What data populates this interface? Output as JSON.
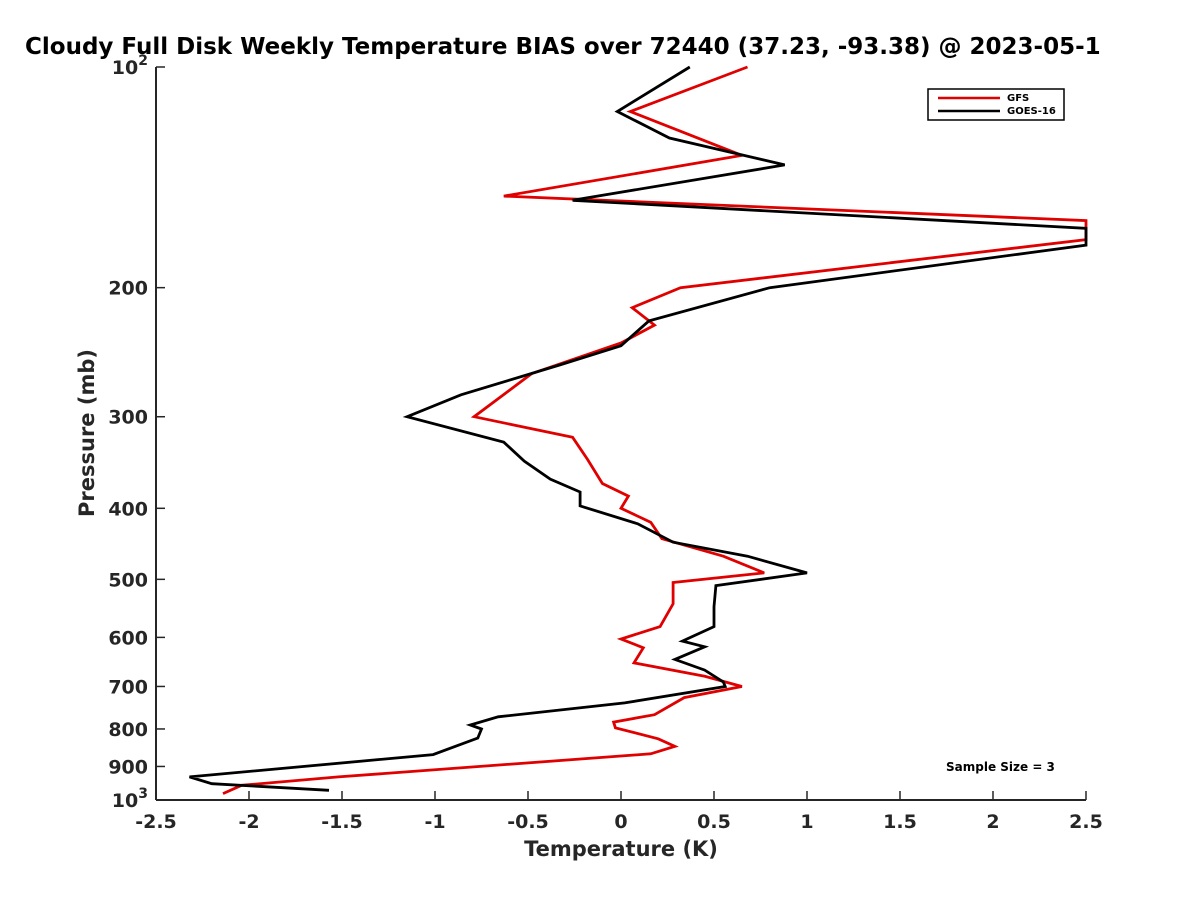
{
  "chart_data": {
    "type": "line",
    "title": "Cloudy Full Disk Weekly Temperature BIAS over 72440 (37.23, -93.38) @ 2023-05-1",
    "xlabel": "Temperature (K)",
    "ylabel": "Pressure (mb)",
    "xlim": [
      -2.5,
      2.5
    ],
    "ylim": [
      100,
      1000
    ],
    "y_scale": "log",
    "y_reversed": true,
    "x_ticks": [
      -2.5,
      -2,
      -1.5,
      -1,
      -0.5,
      0,
      0.5,
      1,
      1.5,
      2,
      2.5
    ],
    "x_tick_labels": [
      "-2.5",
      "-2",
      "-1.5",
      "-1",
      "-0.5",
      "0",
      "0.5",
      "1",
      "1.5",
      "2",
      "2.5"
    ],
    "y_ticks": [
      100,
      200,
      300,
      400,
      500,
      600,
      700,
      800,
      900,
      1000
    ],
    "y_tick_labels": [
      {
        "base": "10",
        "exp": "2"
      },
      {
        "base": "200",
        "exp": ""
      },
      {
        "base": "300",
        "exp": ""
      },
      {
        "base": "400",
        "exp": ""
      },
      {
        "base": "500",
        "exp": ""
      },
      {
        "base": "600",
        "exp": ""
      },
      {
        "base": "700",
        "exp": ""
      },
      {
        "base": "800",
        "exp": ""
      },
      {
        "base": "900",
        "exp": ""
      },
      {
        "base": "10",
        "exp": "3"
      }
    ],
    "grid": false,
    "legend_position": "top-right",
    "annotation": "Sample Size = 3",
    "series": [
      {
        "name": "GFS",
        "color": "#e00000",
        "points": [
          [
            0.68,
            100
          ],
          [
            0.05,
            115
          ],
          [
            0.65,
            132
          ],
          [
            -0.63,
            150
          ],
          [
            2.5,
            162
          ],
          [
            2.5,
            172
          ],
          [
            0.32,
            200
          ],
          [
            0.06,
            213
          ],
          [
            0.18,
            225
          ],
          [
            0.0,
            238
          ],
          [
            -0.48,
            262
          ],
          [
            -0.79,
            300
          ],
          [
            -0.26,
            320
          ],
          [
            -0.18,
            343
          ],
          [
            -0.1,
            370
          ],
          [
            0.04,
            385
          ],
          [
            0.0,
            400
          ],
          [
            0.16,
            418
          ],
          [
            0.22,
            440
          ],
          [
            0.55,
            465
          ],
          [
            0.77,
            490
          ],
          [
            0.28,
            505
          ],
          [
            0.28,
            540
          ],
          [
            0.21,
            580
          ],
          [
            0.0,
            603
          ],
          [
            0.12,
            620
          ],
          [
            0.07,
            650
          ],
          [
            0.45,
            678
          ],
          [
            0.65,
            700
          ],
          [
            0.34,
            725
          ],
          [
            0.18,
            765
          ],
          [
            -0.04,
            783
          ],
          [
            -0.03,
            797
          ],
          [
            0.2,
            825
          ],
          [
            0.29,
            845
          ],
          [
            0.16,
            865
          ],
          [
            -1.52,
            930
          ],
          [
            -2.04,
            955
          ],
          [
            -2.14,
            980
          ]
        ]
      },
      {
        "name": "GOES-16",
        "color": "#000000",
        "points": [
          [
            0.37,
            100
          ],
          [
            -0.02,
            115
          ],
          [
            0.26,
            125
          ],
          [
            0.88,
            136
          ],
          [
            -0.26,
            152
          ],
          [
            2.5,
            166
          ],
          [
            2.5,
            175
          ],
          [
            0.8,
            200
          ],
          [
            0.15,
            222
          ],
          [
            0.0,
            240
          ],
          [
            -0.33,
            255
          ],
          [
            -0.86,
            280
          ],
          [
            -1.15,
            300
          ],
          [
            -0.63,
            325
          ],
          [
            -0.52,
            345
          ],
          [
            -0.38,
            365
          ],
          [
            -0.22,
            380
          ],
          [
            -0.22,
            397
          ],
          [
            0.09,
            420
          ],
          [
            0.28,
            445
          ],
          [
            0.68,
            465
          ],
          [
            1.0,
            490
          ],
          [
            0.51,
            510
          ],
          [
            0.5,
            545
          ],
          [
            0.5,
            580
          ],
          [
            0.33,
            607
          ],
          [
            0.45,
            618
          ],
          [
            0.29,
            643
          ],
          [
            0.45,
            665
          ],
          [
            0.55,
            690
          ],
          [
            0.56,
            700
          ],
          [
            0.02,
            737
          ],
          [
            -0.66,
            770
          ],
          [
            -0.81,
            790
          ],
          [
            -0.75,
            800
          ],
          [
            -0.77,
            823
          ],
          [
            -1.01,
            867
          ],
          [
            -2.32,
            930
          ],
          [
            -2.2,
            950
          ],
          [
            -1.57,
            970
          ]
        ]
      }
    ]
  }
}
